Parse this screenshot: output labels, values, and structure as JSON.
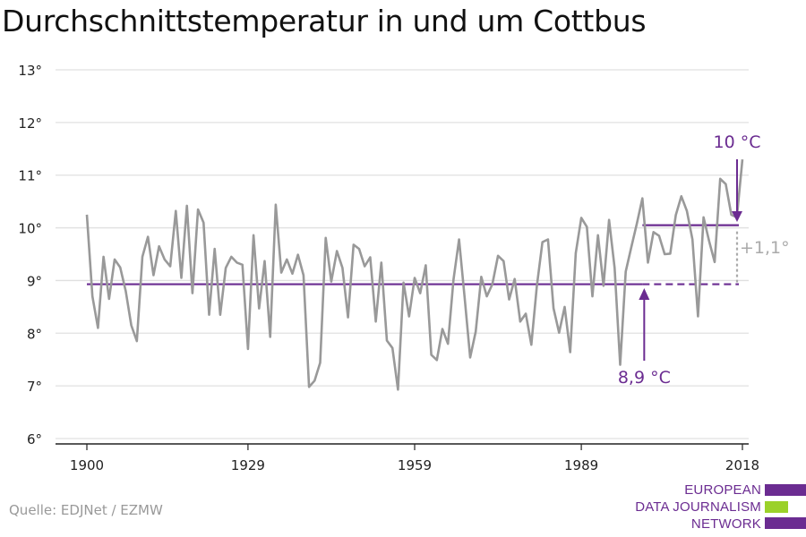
{
  "chart_data": {
    "type": "line",
    "title": "Durchschnittstemperatur in und um Cottbus",
    "xlabel": "",
    "ylabel": "",
    "x_ticks": [
      "1900",
      "1929",
      "1959",
      "1989",
      "2018"
    ],
    "y_ticks": [
      "6°",
      "7°",
      "8°",
      "9°",
      "10°",
      "11°",
      "12°",
      "13°"
    ],
    "ylim": [
      6,
      13
    ],
    "xlim": [
      1900,
      2018
    ],
    "grid": true,
    "x": [
      1900,
      1901,
      1902,
      1903,
      1904,
      1905,
      1906,
      1907,
      1908,
      1909,
      1910,
      1911,
      1912,
      1913,
      1914,
      1915,
      1916,
      1917,
      1918,
      1919,
      1920,
      1921,
      1922,
      1923,
      1924,
      1925,
      1926,
      1927,
      1928,
      1929,
      1930,
      1931,
      1932,
      1933,
      1934,
      1935,
      1936,
      1937,
      1938,
      1939,
      1940,
      1941,
      1942,
      1943,
      1944,
      1945,
      1946,
      1947,
      1948,
      1949,
      1950,
      1951,
      1952,
      1953,
      1954,
      1955,
      1956,
      1957,
      1958,
      1959,
      1960,
      1961,
      1962,
      1963,
      1964,
      1965,
      1966,
      1967,
      1968,
      1969,
      1970,
      1971,
      1972,
      1973,
      1974,
      1975,
      1976,
      1977,
      1978,
      1979,
      1980,
      1981,
      1982,
      1983,
      1984,
      1985,
      1986,
      1987,
      1988,
      1989,
      1990,
      1991,
      1992,
      1993,
      1994,
      1995,
      1996,
      1997,
      1998,
      1999,
      2000,
      2001,
      2002,
      2003,
      2004,
      2005,
      2006,
      2007,
      2008,
      2009,
      2010,
      2011,
      2012,
      2013,
      2014,
      2015,
      2016,
      2017,
      2018
    ],
    "series": [
      {
        "color": "#999999",
        "values": [
          10.25,
          8.7,
          8.1,
          9.45,
          8.65,
          9.4,
          9.25,
          8.8,
          8.15,
          7.85,
          9.45,
          9.83,
          9.1,
          9.65,
          9.4,
          9.27,
          10.32,
          9.05,
          10.42,
          8.76,
          10.35,
          10.1,
          8.35,
          9.6,
          8.35,
          9.24,
          9.45,
          9.34,
          9.3,
          7.7,
          9.86,
          8.47,
          9.37,
          7.93,
          10.44,
          9.15,
          9.4,
          9.13,
          9.49,
          9.1,
          6.98,
          7.1,
          7.44,
          9.81,
          8.98,
          9.56,
          9.24,
          8.3,
          9.68,
          9.6,
          9.27,
          9.44,
          8.22,
          9.34,
          7.86,
          7.72,
          6.93,
          8.96,
          8.32,
          9.05,
          8.76,
          9.29,
          7.59,
          7.49,
          8.08,
          7.8,
          9.02,
          9.78,
          8.68,
          7.54,
          8.03,
          9.07,
          8.7,
          8.93,
          9.47,
          9.37,
          8.64,
          9.03,
          8.22,
          8.37,
          7.78,
          8.9,
          9.73,
          9.78,
          8.47,
          8.01,
          8.5,
          7.64,
          9.52,
          10.19,
          10.02,
          8.7,
          9.86,
          8.9,
          10.15,
          9.24,
          7.4,
          9.17,
          9.63,
          10.08,
          10.56,
          9.34,
          9.92,
          9.85,
          9.5,
          9.51,
          10.24,
          10.6,
          10.32,
          9.78,
          8.32,
          10.2,
          9.75,
          9.35,
          10.93,
          10.83,
          10.25,
          10.2,
          11.3
        ]
      }
    ],
    "reference_lines": [
      {
        "label": "8,9 °C",
        "value": 8.93,
        "from": 1900,
        "solid_until": 2000,
        "to": 2018,
        "color": "#6b2c91"
      },
      {
        "label": "10 °C",
        "value": 10.05,
        "from": 2000,
        "to": 2018,
        "color": "#6b2c91"
      }
    ],
    "difference_label": "+1,1°",
    "difference_color": "#aaaaaa"
  },
  "source": "Quelle: EDJNet / EZMW",
  "logo": {
    "lines": [
      "EUROPEAN",
      "DATA JOURNALISM",
      "NETWORK"
    ],
    "purple": "#6b2c91",
    "green": "#9bd12a"
  }
}
